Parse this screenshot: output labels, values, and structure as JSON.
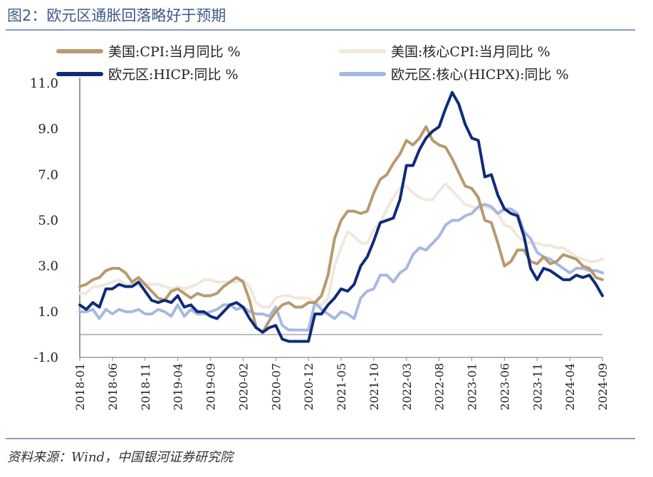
{
  "title": "图2：欧元区通胀回落略好于预期",
  "source": "资料来源：Wind，中国银河证券研究院",
  "chart_data": {
    "type": "line",
    "title": "图2：欧元区通胀回落略好于预期",
    "xlabel": "",
    "ylabel": "",
    "ylim": [
      -1.0,
      11.0
    ],
    "yticks": [
      "11.0",
      "9.0",
      "7.0",
      "5.0",
      "3.0",
      "1.0",
      "-1.0"
    ],
    "x_start": "2018-01",
    "x_end": "2024-09",
    "xticks": [
      "2018-01",
      "2018-06",
      "2018-11",
      "2019-04",
      "2019-09",
      "2020-02",
      "2020-07",
      "2020-12",
      "2021-05",
      "2021-10",
      "2022-03",
      "2022-08",
      "2023-01",
      "2023-06",
      "2023-11",
      "2024-04",
      "2024-09"
    ],
    "grid": false,
    "legend_position": "top",
    "series": [
      {
        "name": "美国:CPI:当月同比 %",
        "color": "#b89a6e",
        "width": 4,
        "values": [
          2.1,
          2.2,
          2.4,
          2.5,
          2.8,
          2.9,
          2.9,
          2.7,
          2.3,
          2.5,
          2.2,
          1.9,
          1.6,
          1.5,
          1.9,
          2.0,
          1.8,
          1.6,
          1.8,
          1.7,
          1.7,
          1.8,
          2.1,
          2.3,
          2.5,
          2.3,
          1.5,
          0.3,
          0.1,
          0.6,
          1.0,
          1.3,
          1.4,
          1.2,
          1.2,
          1.4,
          1.4,
          1.7,
          2.6,
          4.2,
          5.0,
          5.4,
          5.4,
          5.3,
          5.4,
          6.2,
          6.8,
          7.0,
          7.5,
          7.9,
          8.5,
          8.3,
          8.6,
          9.1,
          8.5,
          8.3,
          8.2,
          7.7,
          7.1,
          6.5,
          6.4,
          6.0,
          5.0,
          4.9,
          4.0,
          3.0,
          3.2,
          3.7,
          3.7,
          3.2,
          3.1,
          3.4,
          3.1,
          3.2,
          3.5,
          3.4,
          3.3,
          3.0,
          2.9,
          2.5,
          2.4
        ]
      },
      {
        "name": "美国:核心CPI:当月同比 %",
        "color": "#efe8dc",
        "width": 4,
        "values": [
          1.8,
          1.8,
          2.1,
          2.1,
          2.2,
          2.3,
          2.4,
          2.2,
          2.2,
          2.1,
          2.2,
          2.2,
          2.2,
          2.1,
          2.0,
          2.1,
          2.0,
          2.1,
          2.2,
          2.4,
          2.4,
          2.3,
          2.3,
          2.3,
          2.3,
          2.4,
          2.1,
          1.4,
          1.2,
          1.2,
          1.6,
          1.7,
          1.7,
          1.6,
          1.6,
          1.6,
          1.4,
          1.3,
          1.6,
          3.0,
          3.8,
          4.5,
          4.3,
          4.0,
          4.0,
          4.6,
          4.9,
          5.5,
          6.0,
          6.4,
          6.5,
          6.2,
          6.0,
          5.9,
          5.9,
          6.3,
          6.6,
          6.3,
          6.0,
          5.7,
          5.6,
          5.5,
          5.6,
          5.5,
          5.3,
          4.8,
          4.7,
          4.3,
          4.1,
          4.0,
          4.0,
          3.9,
          3.9,
          3.8,
          3.8,
          3.6,
          3.4,
          3.3,
          3.2,
          3.2,
          3.3
        ]
      },
      {
        "name": "欧元区:HICP:同比 %",
        "color": "#0f2b7a",
        "width": 4,
        "values": [
          1.3,
          1.1,
          1.4,
          1.2,
          2.0,
          2.0,
          2.2,
          2.1,
          2.1,
          2.3,
          1.9,
          1.5,
          1.4,
          1.5,
          1.4,
          1.7,
          1.2,
          1.3,
          1.0,
          1.0,
          0.8,
          0.7,
          1.0,
          1.3,
          1.4,
          1.2,
          0.7,
          0.3,
          0.1,
          0.3,
          0.4,
          -0.2,
          -0.3,
          -0.3,
          -0.3,
          -0.3,
          0.9,
          0.9,
          1.3,
          1.6,
          2.0,
          1.9,
          2.2,
          3.0,
          3.4,
          4.1,
          4.9,
          5.0,
          5.1,
          5.9,
          7.4,
          7.4,
          8.1,
          8.6,
          8.9,
          9.1,
          9.9,
          10.6,
          10.1,
          9.2,
          8.6,
          8.5,
          6.9,
          7.0,
          6.1,
          5.5,
          5.3,
          5.2,
          4.3,
          2.9,
          2.4,
          2.9,
          2.8,
          2.6,
          2.4,
          2.4,
          2.6,
          2.5,
          2.6,
          2.2,
          1.7
        ]
      },
      {
        "name": "欧元区:核心(HICPX):同比 %",
        "color": "#a7b8e0",
        "width": 4,
        "values": [
          1.0,
          1.0,
          1.1,
          0.7,
          1.1,
          0.9,
          1.1,
          1.0,
          1.0,
          1.1,
          0.9,
          0.9,
          1.1,
          1.0,
          0.8,
          1.3,
          0.8,
          1.1,
          0.9,
          0.9,
          1.0,
          1.1,
          1.3,
          1.3,
          1.1,
          1.2,
          1.0,
          0.9,
          0.9,
          0.8,
          1.2,
          0.4,
          0.2,
          0.2,
          0.2,
          0.2,
          1.4,
          1.1,
          0.9,
          0.7,
          1.0,
          0.9,
          0.7,
          1.6,
          1.9,
          2.0,
          2.6,
          2.6,
          2.3,
          2.7,
          2.9,
          3.5,
          3.8,
          3.7,
          4.0,
          4.3,
          4.8,
          5.0,
          5.0,
          5.2,
          5.3,
          5.6,
          5.7,
          5.6,
          5.3,
          5.5,
          5.5,
          5.3,
          4.5,
          4.2,
          3.6,
          3.4,
          3.3,
          3.1,
          2.9,
          2.7,
          2.9,
          2.9,
          2.8,
          2.8,
          2.7
        ]
      }
    ]
  }
}
